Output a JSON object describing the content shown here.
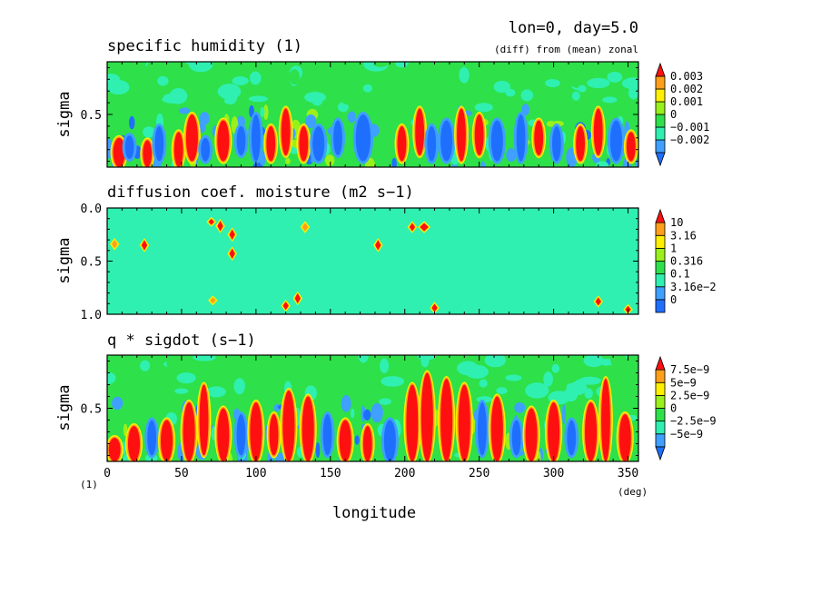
{
  "header": {
    "title": "lon=0, day=5.0",
    "subtitle": "(diff) from (mean) zonal"
  },
  "colors": {
    "c_dblue": "#1f6fff",
    "c_blue": "#3fa0ff",
    "c_cyan": "#2ff0b0",
    "c_green": "#2ee04a",
    "c_lgreen": "#9af01a",
    "c_yellow": "#fff000",
    "c_orange": "#ff9f1a",
    "c_red": "#ff1010"
  },
  "chart_data": [
    {
      "type": "heatmap",
      "id": "p1",
      "title": "specific humidity (1)",
      "ylabel": "sigma",
      "yticks": [
        "0.5"
      ],
      "xlim": [
        0,
        357
      ],
      "ylim": [
        0.05,
        0.95
      ],
      "colorbar": {
        "labels": [
          "0.003",
          "0.002",
          "0.001",
          "0",
          "−0.001",
          "−0.002"
        ],
        "colors": [
          "#1f6fff",
          "#3fa0ff",
          "#2ff0b0",
          "#2ee04a",
          "#9af01a",
          "#fff000",
          "#ff9f1a",
          "#ff1010"
        ]
      },
      "blobs": [
        {
          "lon": 8,
          "w": 4,
          "bot": 0.05,
          "top": 0.3,
          "lvl": 7
        },
        {
          "lon": 15,
          "w": 3,
          "bot": 0.12,
          "top": 0.32,
          "lvl": 0
        },
        {
          "lon": 27,
          "w": 3,
          "bot": 0.05,
          "top": 0.28,
          "lvl": 7
        },
        {
          "lon": 35,
          "w": 3,
          "bot": 0.1,
          "top": 0.4,
          "lvl": 0
        },
        {
          "lon": 48,
          "w": 3,
          "bot": 0.05,
          "top": 0.35,
          "lvl": 7
        },
        {
          "lon": 57,
          "w": 4,
          "bot": 0.1,
          "top": 0.5,
          "lvl": 7
        },
        {
          "lon": 66,
          "w": 3,
          "bot": 0.1,
          "top": 0.3,
          "lvl": 0
        },
        {
          "lon": 78,
          "w": 4,
          "bot": 0.1,
          "top": 0.45,
          "lvl": 7
        },
        {
          "lon": 90,
          "w": 3,
          "bot": 0.15,
          "top": 0.4,
          "lvl": 0
        },
        {
          "lon": 100,
          "w": 3,
          "bot": 0.1,
          "top": 0.5,
          "lvl": 0
        },
        {
          "lon": 110,
          "w": 3,
          "bot": 0.1,
          "top": 0.4,
          "lvl": 7
        },
        {
          "lon": 120,
          "w": 3,
          "bot": 0.15,
          "top": 0.55,
          "lvl": 7
        },
        {
          "lon": 132,
          "w": 3,
          "bot": 0.1,
          "top": 0.4,
          "lvl": 7
        },
        {
          "lon": 142,
          "w": 4,
          "bot": 0.1,
          "top": 0.4,
          "lvl": 0
        },
        {
          "lon": 155,
          "w": 3,
          "bot": 0.15,
          "top": 0.45,
          "lvl": 0
        },
        {
          "lon": 172,
          "w": 5,
          "bot": 0.1,
          "top": 0.5,
          "lvl": 0
        },
        {
          "lon": 198,
          "w": 3,
          "bot": 0.1,
          "top": 0.4,
          "lvl": 7
        },
        {
          "lon": 210,
          "w": 3,
          "bot": 0.15,
          "top": 0.55,
          "lvl": 7
        },
        {
          "lon": 218,
          "w": 3,
          "bot": 0.1,
          "top": 0.4,
          "lvl": 0
        },
        {
          "lon": 228,
          "w": 4,
          "bot": 0.1,
          "top": 0.45,
          "lvl": 0
        },
        {
          "lon": 238,
          "w": 3,
          "bot": 0.1,
          "top": 0.55,
          "lvl": 7
        },
        {
          "lon": 250,
          "w": 3,
          "bot": 0.15,
          "top": 0.5,
          "lvl": 7
        },
        {
          "lon": 262,
          "w": 4,
          "bot": 0.1,
          "top": 0.45,
          "lvl": 0
        },
        {
          "lon": 278,
          "w": 3,
          "bot": 0.1,
          "top": 0.5,
          "lvl": 0
        },
        {
          "lon": 290,
          "w": 3,
          "bot": 0.15,
          "top": 0.45,
          "lvl": 7
        },
        {
          "lon": 302,
          "w": 3,
          "bot": 0.1,
          "top": 0.4,
          "lvl": 0
        },
        {
          "lon": 318,
          "w": 3,
          "bot": 0.1,
          "top": 0.4,
          "lvl": 7
        },
        {
          "lon": 330,
          "w": 3,
          "bot": 0.15,
          "top": 0.55,
          "lvl": 7
        },
        {
          "lon": 342,
          "w": 4,
          "bot": 0.1,
          "top": 0.45,
          "lvl": 0
        },
        {
          "lon": 352,
          "w": 3,
          "bot": 0.1,
          "top": 0.35,
          "lvl": 7
        }
      ]
    },
    {
      "type": "heatmap",
      "id": "p2",
      "title": "diffusion coef. moisture (m2 s−1)",
      "ylabel": "sigma",
      "yticks": [
        "0.0",
        "0.5",
        "1.0"
      ],
      "xlim": [
        0,
        357
      ],
      "ylim": [
        0.0,
        1.0
      ],
      "colorbar": {
        "labels": [
          "10",
          "3.16",
          "1",
          "0.316",
          "0.1",
          "3.16e−2",
          "0"
        ],
        "colors": [
          "#1f6fff",
          "#3fa0ff",
          "#2ff0b0",
          "#2ee04a",
          "#9af01a",
          "#fff000",
          "#ff9f1a",
          "#ff1010"
        ]
      },
      "blobs": [
        {
          "lon": 5,
          "w": 2,
          "bot": 0.3,
          "top": 0.38,
          "lvl": 6
        },
        {
          "lon": 25,
          "w": 2,
          "bot": 0.3,
          "top": 0.4,
          "lvl": 7
        },
        {
          "lon": 70,
          "w": 2,
          "bot": 0.1,
          "top": 0.16,
          "lvl": 7
        },
        {
          "lon": 76,
          "w": 2,
          "bot": 0.12,
          "top": 0.22,
          "lvl": 7
        },
        {
          "lon": 84,
          "w": 2,
          "bot": 0.2,
          "top": 0.3,
          "lvl": 7
        },
        {
          "lon": 84,
          "w": 2,
          "bot": 0.38,
          "top": 0.48,
          "lvl": 7
        },
        {
          "lon": 133,
          "w": 2,
          "bot": 0.14,
          "top": 0.22,
          "lvl": 6
        },
        {
          "lon": 182,
          "w": 2,
          "bot": 0.3,
          "top": 0.4,
          "lvl": 7
        },
        {
          "lon": 205,
          "w": 2,
          "bot": 0.14,
          "top": 0.22,
          "lvl": 7
        },
        {
          "lon": 213,
          "w": 3,
          "bot": 0.14,
          "top": 0.22,
          "lvl": 7
        },
        {
          "lon": 128,
          "w": 2,
          "bot": 0.8,
          "top": 0.9,
          "lvl": 7
        },
        {
          "lon": 120,
          "w": 2,
          "bot": 0.88,
          "top": 0.96,
          "lvl": 7
        },
        {
          "lon": 71,
          "w": 2,
          "bot": 0.84,
          "top": 0.9,
          "lvl": 6
        },
        {
          "lon": 220,
          "w": 2,
          "bot": 0.9,
          "top": 0.98,
          "lvl": 7
        },
        {
          "lon": 330,
          "w": 2,
          "bot": 0.84,
          "top": 0.92,
          "lvl": 7
        },
        {
          "lon": 350,
          "w": 2,
          "bot": 0.92,
          "top": 0.99,
          "lvl": 7
        }
      ]
    },
    {
      "type": "heatmap",
      "id": "p3",
      "title": "q * sigdot (s−1)",
      "ylabel": "sigma",
      "yticks": [
        "0.5"
      ],
      "xlim": [
        0,
        357
      ],
      "ylim": [
        0.05,
        0.95
      ],
      "colorbar": {
        "labels": [
          "7.5e−9",
          "5e−9",
          "2.5e−9",
          "0",
          "−2.5e−9",
          "−5e−9"
        ],
        "colors": [
          "#1f6fff",
          "#3fa0ff",
          "#2ff0b0",
          "#2ee04a",
          "#9af01a",
          "#fff000",
          "#ff9f1a",
          "#ff1010"
        ]
      },
      "blobs": [
        {
          "lon": 5,
          "w": 4,
          "bot": 0.05,
          "top": 0.25,
          "lvl": 7
        },
        {
          "lon": 18,
          "w": 4,
          "bot": 0.05,
          "top": 0.35,
          "lvl": 7
        },
        {
          "lon": 30,
          "w": 3,
          "bot": 0.1,
          "top": 0.4,
          "lvl": 0
        },
        {
          "lon": 40,
          "w": 4,
          "bot": 0.05,
          "top": 0.4,
          "lvl": 7
        },
        {
          "lon": 55,
          "w": 4,
          "bot": 0.05,
          "top": 0.55,
          "lvl": 7
        },
        {
          "lon": 65,
          "w": 3,
          "bot": 0.1,
          "top": 0.7,
          "lvl": 7
        },
        {
          "lon": 78,
          "w": 4,
          "bot": 0.05,
          "top": 0.5,
          "lvl": 7
        },
        {
          "lon": 90,
          "w": 3,
          "bot": 0.1,
          "top": 0.45,
          "lvl": 0
        },
        {
          "lon": 100,
          "w": 4,
          "bot": 0.05,
          "top": 0.55,
          "lvl": 7
        },
        {
          "lon": 112,
          "w": 3,
          "bot": 0.1,
          "top": 0.45,
          "lvl": 7
        },
        {
          "lon": 122,
          "w": 4,
          "bot": 0.05,
          "top": 0.65,
          "lvl": 7
        },
        {
          "lon": 135,
          "w": 4,
          "bot": 0.05,
          "top": 0.6,
          "lvl": 7
        },
        {
          "lon": 148,
          "w": 3,
          "bot": 0.1,
          "top": 0.45,
          "lvl": 0
        },
        {
          "lon": 160,
          "w": 4,
          "bot": 0.05,
          "top": 0.4,
          "lvl": 7
        },
        {
          "lon": 175,
          "w": 3,
          "bot": 0.05,
          "top": 0.35,
          "lvl": 7
        },
        {
          "lon": 190,
          "w": 4,
          "bot": 0.05,
          "top": 0.4,
          "lvl": 0
        },
        {
          "lon": 205,
          "w": 4,
          "bot": 0.05,
          "top": 0.7,
          "lvl": 7
        },
        {
          "lon": 215,
          "w": 4,
          "bot": 0.05,
          "top": 0.8,
          "lvl": 7
        },
        {
          "lon": 228,
          "w": 4,
          "bot": 0.05,
          "top": 0.75,
          "lvl": 7
        },
        {
          "lon": 240,
          "w": 4,
          "bot": 0.05,
          "top": 0.7,
          "lvl": 7
        },
        {
          "lon": 252,
          "w": 3,
          "bot": 0.1,
          "top": 0.55,
          "lvl": 0
        },
        {
          "lon": 262,
          "w": 4,
          "bot": 0.05,
          "top": 0.6,
          "lvl": 7
        },
        {
          "lon": 275,
          "w": 3,
          "bot": 0.1,
          "top": 0.4,
          "lvl": 0
        },
        {
          "lon": 285,
          "w": 4,
          "bot": 0.05,
          "top": 0.5,
          "lvl": 7
        },
        {
          "lon": 300,
          "w": 4,
          "bot": 0.05,
          "top": 0.55,
          "lvl": 7
        },
        {
          "lon": 312,
          "w": 3,
          "bot": 0.1,
          "top": 0.4,
          "lvl": 0
        },
        {
          "lon": 325,
          "w": 4,
          "bot": 0.05,
          "top": 0.55,
          "lvl": 7
        },
        {
          "lon": 335,
          "w": 3,
          "bot": 0.05,
          "top": 0.75,
          "lvl": 7
        },
        {
          "lon": 348,
          "w": 4,
          "bot": 0.05,
          "top": 0.45,
          "lvl": 7
        }
      ]
    }
  ],
  "xaxis": {
    "label": "longitude",
    "ticks": [
      "0",
      "50",
      "100",
      "150",
      "200",
      "250",
      "300",
      "350"
    ],
    "unit": "(deg)",
    "scale_note": "(1)"
  }
}
